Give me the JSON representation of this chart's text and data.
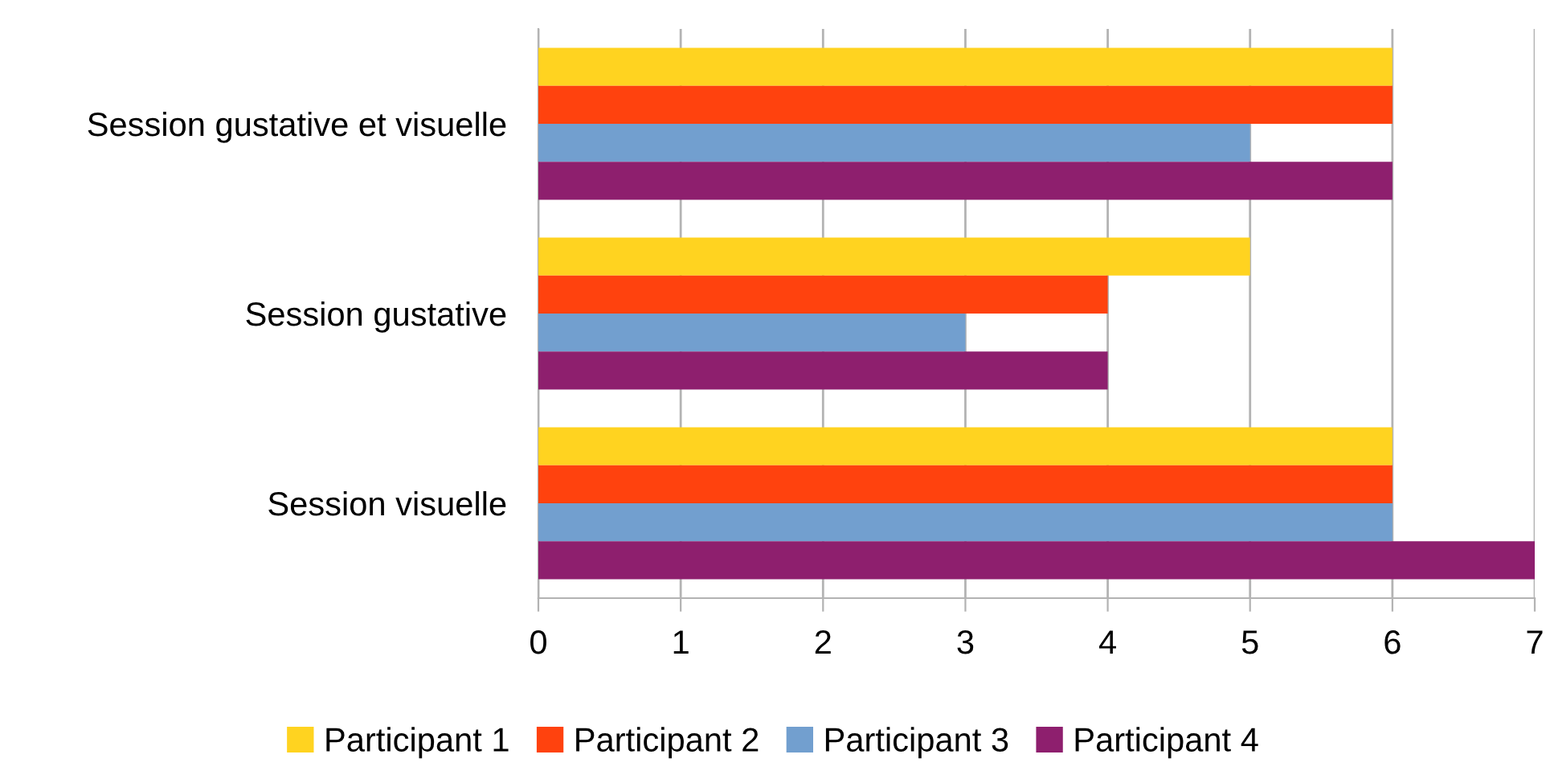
{
  "chart_data": {
    "type": "bar",
    "orientation": "horizontal",
    "categories": [
      "Session gustative et visuelle",
      "Session gustative",
      "Session visuelle"
    ],
    "series": [
      {
        "name": "Participant 1",
        "color": "#ffd320",
        "values": [
          6,
          5,
          6
        ]
      },
      {
        "name": "Participant 2",
        "color": "#ff420e",
        "values": [
          6,
          4,
          6
        ]
      },
      {
        "name": "Participant 3",
        "color": "#729fcf",
        "values": [
          5,
          3,
          6
        ]
      },
      {
        "name": "Participant 4",
        "color": "#8e1f6e",
        "values": [
          6,
          4,
          7
        ]
      }
    ],
    "xlim": [
      0,
      7
    ],
    "xticks": [
      0,
      1,
      2,
      3,
      4,
      5,
      6,
      7
    ],
    "grid": "x",
    "legend": "bottom"
  }
}
